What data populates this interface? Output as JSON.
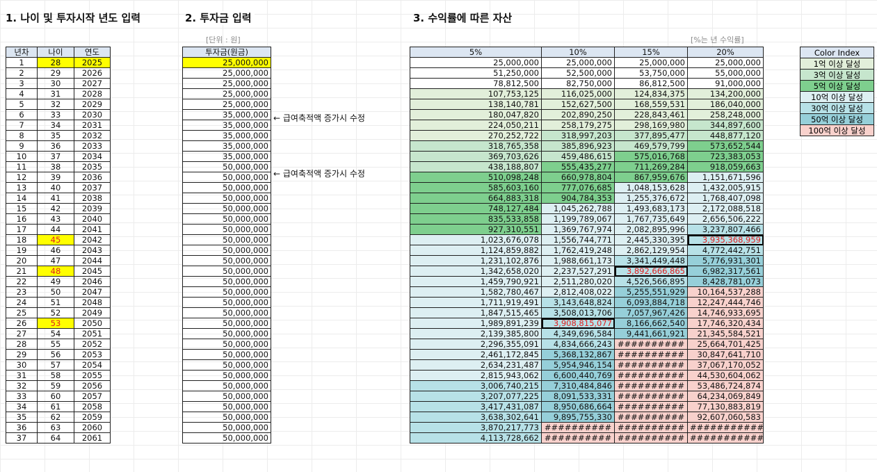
{
  "colors": {
    "g1": "#e2efda",
    "g3": "#c6e6cd",
    "g5": "#7ecf8e",
    "b10": "#ddeff2",
    "b30": "#b7e1e7",
    "b50": "#96cfd9",
    "p100": "#f8d1cc",
    "white": "#ffffff",
    "yellow": "#ffff00",
    "red_text": "#e02020"
  },
  "section1": {
    "title": "1. 나이 및 투자시작 년도 입력"
  },
  "section2": {
    "title": "2. 투자금 입력",
    "unit_label": "[단위 : 원]",
    "header": "투자금(원금)"
  },
  "section3": {
    "title": "3. 수익률에 따른 자산",
    "unit_label": "[%는 년 수익률]",
    "headers": [
      "5%",
      "10%",
      "15%",
      "20%"
    ]
  },
  "inputs_headers": [
    "년차",
    "나이",
    "연도"
  ],
  "notes": [
    "← 급여축적액 증가시 수정",
    "← 급여축적액 증가시 수정"
  ],
  "legend": {
    "title": "Color Index",
    "items": [
      {
        "label": "1억 이상 달성",
        "color": "#e2efda"
      },
      {
        "label": "3억 이상 달성",
        "color": "#c6e6cd"
      },
      {
        "label": "5억 이상 달성",
        "color": "#7ecf8e"
      },
      {
        "label": "10억 이상 달성",
        "color": "#ddeff2"
      },
      {
        "label": "30억 이상 달성",
        "color": "#b7e1e7"
      },
      {
        "label": "50억 이상 달성",
        "color": "#96cfd9"
      },
      {
        "label": "100억 이상 달성",
        "color": "#f8d1cc"
      }
    ]
  },
  "rows": [
    {
      "n": "1",
      "age": "28",
      "year": "2025",
      "inv": "25,000,000",
      "v": [
        "25,000,000",
        "25,000,000",
        "25,000,000",
        "25,000,000"
      ]
    },
    {
      "n": "2",
      "age": "29",
      "year": "2026",
      "inv": "25,000,000",
      "v": [
        "51,250,000",
        "52,500,000",
        "53,750,000",
        "55,000,000"
      ]
    },
    {
      "n": "3",
      "age": "30",
      "year": "2027",
      "inv": "25,000,000",
      "v": [
        "78,812,500",
        "82,750,000",
        "86,812,500",
        "91,000,000"
      ]
    },
    {
      "n": "4",
      "age": "31",
      "year": "2028",
      "inv": "25,000,000",
      "v": [
        "107,753,125",
        "116,025,000",
        "124,834,375",
        "134,200,000"
      ]
    },
    {
      "n": "5",
      "age": "32",
      "year": "2029",
      "inv": "25,000,000",
      "v": [
        "138,140,781",
        "152,627,500",
        "168,559,531",
        "186,040,000"
      ]
    },
    {
      "n": "6",
      "age": "33",
      "year": "2030",
      "inv": "35,000,000",
      "v": [
        "180,047,820",
        "202,890,250",
        "228,843,461",
        "258,248,000"
      ]
    },
    {
      "n": "7",
      "age": "34",
      "year": "2031",
      "inv": "35,000,000",
      "v": [
        "224,050,211",
        "258,179,275",
        "298,169,980",
        "344,897,600"
      ]
    },
    {
      "n": "8",
      "age": "35",
      "year": "2032",
      "inv": "35,000,000",
      "v": [
        "270,252,722",
        "318,997,203",
        "377,895,477",
        "448,877,120"
      ]
    },
    {
      "n": "9",
      "age": "36",
      "year": "2033",
      "inv": "35,000,000",
      "v": [
        "318,765,358",
        "385,896,923",
        "469,579,799",
        "573,652,544"
      ]
    },
    {
      "n": "10",
      "age": "37",
      "year": "2034",
      "inv": "35,000,000",
      "v": [
        "369,703,626",
        "459,486,615",
        "575,016,768",
        "723,383,053"
      ]
    },
    {
      "n": "11",
      "age": "38",
      "year": "2035",
      "inv": "50,000,000",
      "v": [
        "438,188,807",
        "555,435,277",
        "711,269,284",
        "918,059,663"
      ]
    },
    {
      "n": "12",
      "age": "39",
      "year": "2036",
      "inv": "50,000,000",
      "v": [
        "510,098,248",
        "660,978,804",
        "867,959,676",
        "1,151,671,596"
      ]
    },
    {
      "n": "13",
      "age": "40",
      "year": "2037",
      "inv": "50,000,000",
      "v": [
        "585,603,160",
        "777,076,685",
        "1,048,153,628",
        "1,432,005,915"
      ]
    },
    {
      "n": "14",
      "age": "41",
      "year": "2038",
      "inv": "50,000,000",
      "v": [
        "664,883,318",
        "904,784,353",
        "1,255,376,672",
        "1,768,407,098"
      ]
    },
    {
      "n": "15",
      "age": "42",
      "year": "2039",
      "inv": "50,000,000",
      "v": [
        "748,127,484",
        "1,045,262,788",
        "1,493,683,173",
        "2,172,088,518"
      ]
    },
    {
      "n": "16",
      "age": "43",
      "year": "2040",
      "inv": "50,000,000",
      "v": [
        "835,533,858",
        "1,199,789,067",
        "1,767,735,649",
        "2,656,506,222"
      ]
    },
    {
      "n": "17",
      "age": "44",
      "year": "2041",
      "inv": "50,000,000",
      "v": [
        "927,310,551",
        "1,369,767,974",
        "2,082,895,996",
        "3,237,807,466"
      ]
    },
    {
      "n": "18",
      "age": "45",
      "year": "2042",
      "inv": "50,000,000",
      "v": [
        "1,023,676,078",
        "1,556,744,771",
        "2,445,330,395",
        "3,935,368,959"
      ]
    },
    {
      "n": "19",
      "age": "46",
      "year": "2043",
      "inv": "50,000,000",
      "v": [
        "1,124,859,882",
        "1,762,419,248",
        "2,862,129,954",
        "4,772,442,751"
      ]
    },
    {
      "n": "20",
      "age": "47",
      "year": "2044",
      "inv": "50,000,000",
      "v": [
        "1,231,102,876",
        "1,988,661,173",
        "3,341,449,448",
        "5,776,931,301"
      ]
    },
    {
      "n": "21",
      "age": "48",
      "year": "2045",
      "inv": "50,000,000",
      "v": [
        "1,342,658,020",
        "2,237,527,291",
        "3,892,666,865",
        "6,982,317,561"
      ]
    },
    {
      "n": "22",
      "age": "49",
      "year": "2046",
      "inv": "50,000,000",
      "v": [
        "1,459,790,921",
        "2,511,280,020",
        "4,526,566,895",
        "8,428,781,073"
      ]
    },
    {
      "n": "23",
      "age": "50",
      "year": "2047",
      "inv": "50,000,000",
      "v": [
        "1,582,780,467",
        "2,812,408,022",
        "5,255,551,929",
        "10,164,537,288"
      ]
    },
    {
      "n": "24",
      "age": "51",
      "year": "2048",
      "inv": "50,000,000",
      "v": [
        "1,711,919,491",
        "3,143,648,824",
        "6,093,884,718",
        "12,247,444,746"
      ]
    },
    {
      "n": "25",
      "age": "52",
      "year": "2049",
      "inv": "50,000,000",
      "v": [
        "1,847,515,465",
        "3,508,013,706",
        "7,057,967,426",
        "14,746,933,695"
      ]
    },
    {
      "n": "26",
      "age": "53",
      "year": "2050",
      "inv": "50,000,000",
      "v": [
        "1,989,891,239",
        "3,908,815,077",
        "8,166,662,540",
        "17,746,320,434"
      ]
    },
    {
      "n": "27",
      "age": "54",
      "year": "2051",
      "inv": "50,000,000",
      "v": [
        "2,139,385,800",
        "4,349,696,584",
        "9,441,661,921",
        "21,345,584,521"
      ]
    },
    {
      "n": "28",
      "age": "55",
      "year": "2052",
      "inv": "50,000,000",
      "v": [
        "2,296,355,091",
        "4,834,666,243",
        "##########",
        "25,664,701,425"
      ]
    },
    {
      "n": "29",
      "age": "56",
      "year": "2053",
      "inv": "50,000,000",
      "v": [
        "2,461,172,845",
        "5,368,132,867",
        "##########",
        "30,847,641,710"
      ]
    },
    {
      "n": "30",
      "age": "57",
      "year": "2054",
      "inv": "50,000,000",
      "v": [
        "2,634,231,487",
        "5,954,946,154",
        "##########",
        "37,067,170,052"
      ]
    },
    {
      "n": "31",
      "age": "58",
      "year": "2055",
      "inv": "50,000,000",
      "v": [
        "2,815,943,062",
        "6,600,440,769",
        "##########",
        "44,530,604,062"
      ]
    },
    {
      "n": "32",
      "age": "59",
      "year": "2056",
      "inv": "50,000,000",
      "v": [
        "3,006,740,215",
        "7,310,484,846",
        "##########",
        "53,486,724,874"
      ]
    },
    {
      "n": "33",
      "age": "60",
      "year": "2057",
      "inv": "50,000,000",
      "v": [
        "3,207,077,225",
        "8,091,533,331",
        "##########",
        "64,234,069,849"
      ]
    },
    {
      "n": "34",
      "age": "61",
      "year": "2058",
      "inv": "50,000,000",
      "v": [
        "3,417,431,087",
        "8,950,686,664",
        "##########",
        "77,130,883,819"
      ]
    },
    {
      "n": "35",
      "age": "62",
      "year": "2059",
      "inv": "50,000,000",
      "v": [
        "3,638,302,641",
        "9,895,755,330",
        "##########",
        "92,607,060,583"
      ]
    },
    {
      "n": "36",
      "age": "63",
      "year": "2060",
      "inv": "50,000,000",
      "v": [
        "3,870,217,773",
        "##########",
        "##########",
        "###########"
      ]
    },
    {
      "n": "37",
      "age": "64",
      "year": "2061",
      "inv": "50,000,000",
      "v": [
        "4,113,728,662",
        "##########",
        "##########",
        "###########"
      ]
    }
  ]
}
